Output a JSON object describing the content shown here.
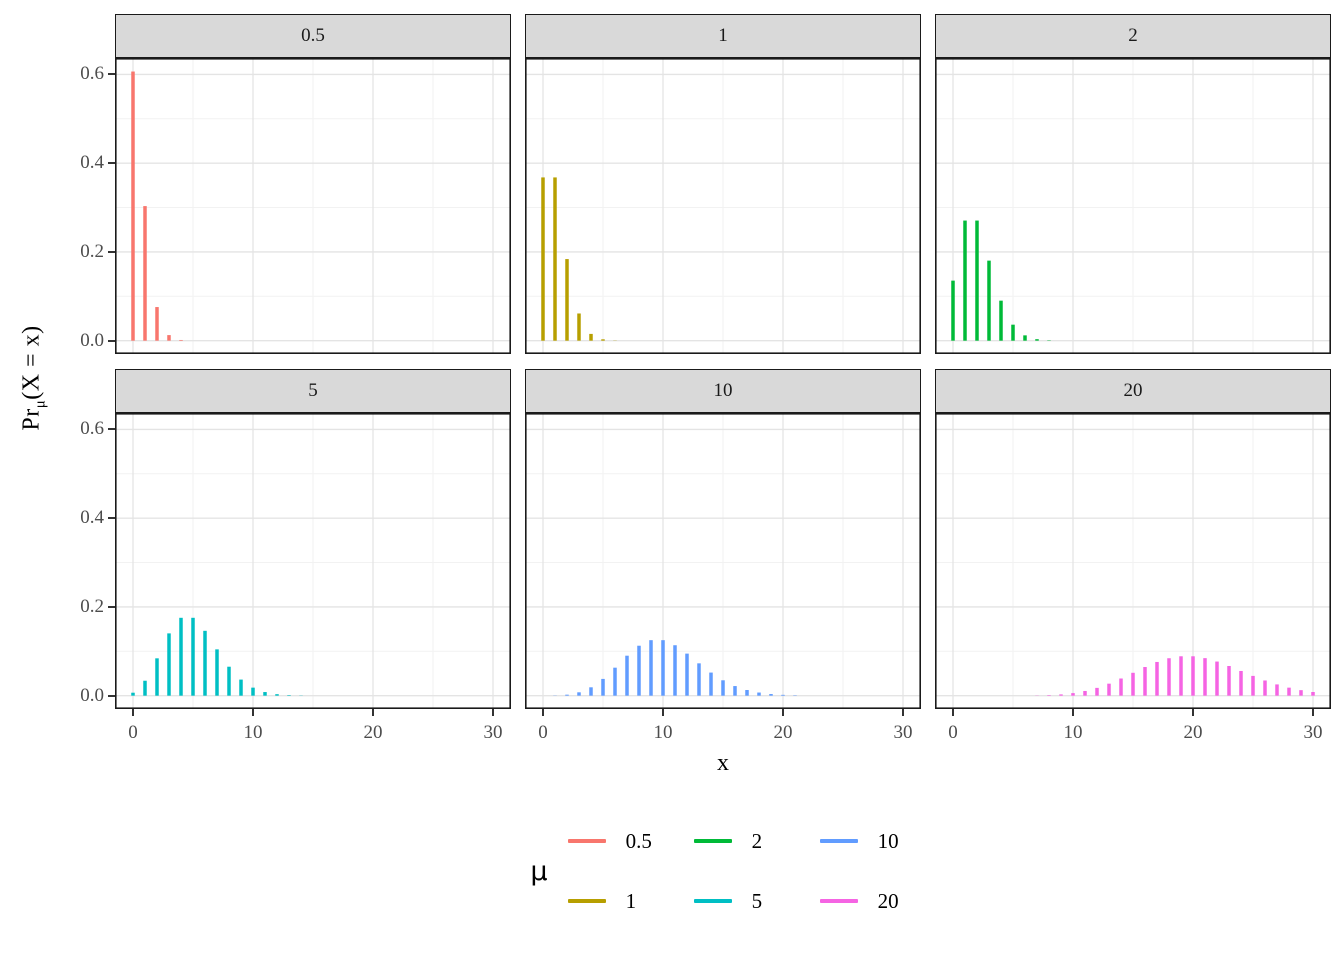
{
  "figure": {
    "x_axis_title": "x",
    "y_axis_title_pre": "Pr",
    "y_axis_title_sub": "μ",
    "y_axis_title_post": "(X = x)"
  },
  "chart_data": {
    "type": "bar",
    "title": "",
    "xlabel": "x",
    "ylabel": "Pr_μ(X = x)",
    "facet_variable": "μ",
    "xlim": [
      -1.5,
      31.5
    ],
    "ylim": [
      -0.03,
      0.637
    ],
    "x_major_ticks": [
      0,
      10,
      20,
      30
    ],
    "x_tick_labels": [
      "0",
      "10",
      "20",
      "30"
    ],
    "x_minor_gridlines": [
      5,
      15,
      25
    ],
    "y_major_ticks": [
      0.0,
      0.2,
      0.4,
      0.6
    ],
    "y_tick_labels": [
      "0.0",
      "0.2",
      "0.4",
      "0.6"
    ],
    "y_minor_gridlines": [
      0.1,
      0.3,
      0.5
    ],
    "grid": "major+minor",
    "legend_position": "bottom",
    "facets": [
      {
        "label": "0.5",
        "mu": 0.5,
        "color": "#F8766D",
        "x_start": 0,
        "pmf": [
          0.6065,
          0.3033,
          0.0758,
          0.0126,
          0.0016,
          0.0002
        ]
      },
      {
        "label": "1",
        "mu": 1,
        "color": "#B79F00",
        "x_start": 0,
        "pmf": [
          0.3679,
          0.3679,
          0.1839,
          0.0613,
          0.0153,
          0.0031,
          0.0005,
          0.0001
        ]
      },
      {
        "label": "2",
        "mu": 2,
        "color": "#00BA38",
        "x_start": 0,
        "pmf": [
          0.1353,
          0.2707,
          0.2707,
          0.1804,
          0.0902,
          0.0361,
          0.012,
          0.0034,
          0.0009,
          0.0002
        ]
      },
      {
        "label": "5",
        "mu": 5,
        "color": "#00BFC4",
        "x_start": 0,
        "pmf": [
          0.0067,
          0.0337,
          0.0842,
          0.1404,
          0.1755,
          0.1755,
          0.1462,
          0.1044,
          0.0653,
          0.0363,
          0.0181,
          0.0082,
          0.0034,
          0.0013,
          0.0005,
          0.0002,
          0.0001
        ]
      },
      {
        "label": "10",
        "mu": 10,
        "color": "#619CFF",
        "x_start": 0,
        "pmf": [
          0.0,
          0.0005,
          0.0023,
          0.0076,
          0.0189,
          0.0378,
          0.0631,
          0.0901,
          0.1126,
          0.1251,
          0.1251,
          0.1137,
          0.0948,
          0.0729,
          0.0521,
          0.0347,
          0.0217,
          0.0128,
          0.0071,
          0.0037,
          0.0019,
          0.0009,
          0.0004,
          0.0002,
          0.0001
        ]
      },
      {
        "label": "20",
        "mu": 20,
        "color": "#F564E3",
        "x_start": 0,
        "pmf": [
          0,
          0,
          0,
          0,
          0,
          0.0001,
          0.0002,
          0.0005,
          0.0013,
          0.0029,
          0.0058,
          0.0106,
          0.0176,
          0.0271,
          0.0387,
          0.0516,
          0.0646,
          0.076,
          0.0844,
          0.0888,
          0.0888,
          0.0846,
          0.0769,
          0.0669,
          0.0557,
          0.0446,
          0.0343,
          0.0254,
          0.0181,
          0.0125,
          0.0083
        ]
      }
    ]
  },
  "legend": {
    "title": "μ",
    "items": [
      {
        "label": "0.5",
        "color": "#F8766D"
      },
      {
        "label": "1",
        "color": "#B79F00"
      },
      {
        "label": "2",
        "color": "#00BA38"
      },
      {
        "label": "5",
        "color": "#00BFC4"
      },
      {
        "label": "10",
        "color": "#619CFF"
      },
      {
        "label": "20",
        "color": "#F564E3"
      }
    ]
  },
  "style": {
    "strip_fill": "#D9D9D9",
    "panel_border": "#1A1A1A",
    "grid_major": "#E4E4E4",
    "grid_minor": "#F2F2F2",
    "axis_text": "#4D4D4D",
    "background": "#FFFFFF"
  }
}
